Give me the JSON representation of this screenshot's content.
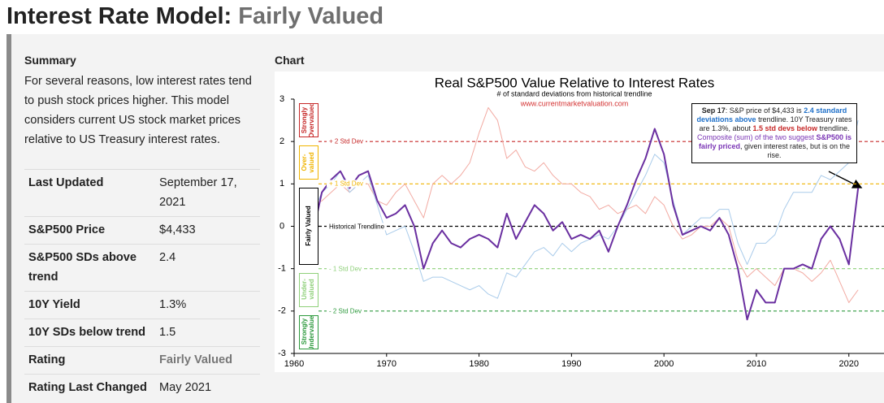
{
  "header": {
    "title": "Interest Rate Model:",
    "status": "Fairly Valued"
  },
  "summary": {
    "heading": "Summary",
    "text": "For several reasons, low interest rates tend to push stock prices higher. This model considers current US stock market prices relative to US Treasury interest rates."
  },
  "table": {
    "rows": [
      [
        "Last Updated",
        "September 17, 2021"
      ],
      [
        "S&P500 Price",
        "$4,433"
      ],
      [
        "S&P500 SDs above trend",
        "2.4"
      ],
      [
        "10Y Yield",
        "1.3%"
      ],
      [
        "10Y SDs below trend",
        "1.5"
      ],
      [
        "Rating",
        "Fairly Valued"
      ],
      [
        "Rating Last Changed",
        "May 2021"
      ]
    ]
  },
  "chart_heading": "Chart",
  "chart_data": {
    "type": "line",
    "title": "Real S&P500 Value Relative to Interest Rates",
    "subtitle": "# of standard deviations from historical trendline",
    "source": "www.currentmarketvaluation.com",
    "xlim": [
      1960,
      2023.8
    ],
    "ylim": [
      -3,
      3
    ],
    "xticks": [
      1960,
      1970,
      1980,
      1990,
      2000,
      2010,
      2020
    ],
    "yticks": [
      -3,
      -2,
      -1,
      0,
      1,
      2,
      3
    ],
    "x": [
      1962,
      1963,
      1964,
      1965,
      1966,
      1967,
      1968,
      1969,
      1970,
      1971,
      1972,
      1973,
      1974,
      1975,
      1976,
      1977,
      1978,
      1979,
      1980,
      1981,
      1982,
      1983,
      1984,
      1985,
      1986,
      1987,
      1988,
      1989,
      1990,
      1991,
      1992,
      1993,
      1994,
      1995,
      1996,
      1997,
      1998,
      1999,
      2000,
      2001,
      2002,
      2003,
      2004,
      2005,
      2006,
      2007,
      2008,
      2009,
      2010,
      2011,
      2012,
      2013,
      2014,
      2015,
      2016,
      2017,
      2018,
      2019,
      2020,
      2021
    ],
    "series": [
      {
        "color": "#f2aaa2",
        "width": 1,
        "values": [
          0.5,
          0.6,
          0.8,
          1.0,
          0.8,
          1.0,
          1.0,
          0.6,
          0.5,
          0.8,
          1.0,
          0.6,
          0.2,
          1.0,
          1.2,
          1.0,
          1.2,
          1.5,
          2.2,
          2.8,
          2.5,
          1.6,
          1.8,
          1.4,
          1.3,
          1.5,
          1.2,
          1.0,
          1.0,
          0.8,
          0.7,
          0.4,
          0.5,
          0.3,
          0.4,
          0.5,
          0.3,
          0.7,
          0.5,
          0.0,
          -0.3,
          -0.2,
          0.0,
          0.0,
          0.2,
          0.0,
          -0.8,
          -1.2,
          -1.0,
          -1.2,
          -1.4,
          -1.0,
          -1.0,
          -1.1,
          -1.3,
          -1.1,
          -0.8,
          -1.3,
          -1.8,
          -1.5
        ]
      },
      {
        "color": "#a9cbea",
        "width": 1,
        "values": [
          0.3,
          0.8,
          1.0,
          1.3,
          0.8,
          1.0,
          1.2,
          0.5,
          -0.2,
          -0.1,
          0.0,
          -0.6,
          -1.3,
          -1.2,
          -1.2,
          -1.3,
          -1.4,
          -1.5,
          -1.4,
          -1.6,
          -1.7,
          -1.1,
          -1.2,
          -0.9,
          -0.6,
          -0.5,
          -0.7,
          -0.4,
          -0.6,
          -0.4,
          -0.3,
          -0.2,
          -0.3,
          0.0,
          0.4,
          0.8,
          1.2,
          1.7,
          1.5,
          0.6,
          -0.2,
          0.0,
          0.2,
          0.2,
          0.4,
          0.4,
          -0.4,
          -0.9,
          -0.4,
          -0.4,
          -0.2,
          0.4,
          0.8,
          0.8,
          0.8,
          1.2,
          1.1,
          1.3,
          1.5,
          2.5
        ]
      },
      {
        "color": "#6a2fa0",
        "width": 2,
        "values": [
          -0.2,
          0.8,
          1.1,
          1.3,
          0.9,
          1.2,
          1.3,
          0.6,
          0.2,
          0.3,
          0.5,
          0.0,
          -1.0,
          -0.4,
          -0.1,
          -0.4,
          -0.5,
          -0.3,
          -0.2,
          -0.3,
          -0.5,
          0.3,
          -0.3,
          0.1,
          0.5,
          0.3,
          -0.1,
          0.1,
          -0.3,
          -0.2,
          -0.3,
          -0.1,
          -0.6,
          0.0,
          0.5,
          1.1,
          1.6,
          2.3,
          1.7,
          0.5,
          -0.2,
          -0.1,
          0.0,
          -0.1,
          0.2,
          -0.2,
          -1.0,
          -2.2,
          -1.5,
          -1.8,
          -1.8,
          -1.0,
          -1.0,
          -0.9,
          -1.0,
          -0.3,
          0.0,
          -0.3,
          -0.9,
          0.9
        ]
      }
    ],
    "reference_lines": [
      {
        "value": 2,
        "label": "+ 2 Std Dev",
        "color": "#c62828"
      },
      {
        "value": 1,
        "label": "+ 1 Std Dev",
        "color": "#f0b400"
      },
      {
        "value": 0,
        "label": "Historical Trendline",
        "color": "#000000"
      },
      {
        "value": -1,
        "label": "- 1 Std Dev",
        "color": "#8fd07a"
      },
      {
        "value": -2,
        "label": "- 2 Std Dev",
        "color": "#2e9a3e"
      }
    ],
    "zones": [
      {
        "range": [
          2,
          3
        ],
        "label": "Strongly Overvalued",
        "color": "#c62828"
      },
      {
        "range": [
          1,
          2
        ],
        "label": "Over-valued",
        "color": "#f0b400"
      },
      {
        "range": [
          -1,
          1
        ],
        "label": "Fairly Valued",
        "color": "#000000"
      },
      {
        "range": [
          -2,
          -1
        ],
        "label": "Under-valued",
        "color": "#8fd07a"
      },
      {
        "range": [
          -3,
          -2
        ],
        "label": "Strongly Undervalued",
        "color": "#2e9a3e"
      }
    ],
    "annotation": [
      "Sep 17",
      ": S&P price of $4,433 is ",
      "2.4 standard deviations above",
      " trendline. 10Y Treasury rates are 1.3%, about ",
      "1.5 std devs below",
      " trendline. ",
      "Composite (sum) of the two suggest ",
      "S&P500 is fairly priced",
      ", given interest rates, but is on the rise."
    ]
  }
}
